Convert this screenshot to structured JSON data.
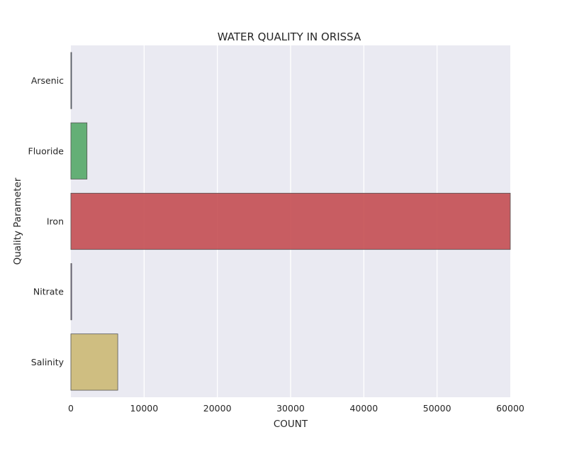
{
  "chart_data": {
    "type": "bar",
    "orientation": "horizontal",
    "title": "WATER QUALITY IN ORISSA",
    "xlabel": "COUNT",
    "ylabel": "Quality Parameter",
    "categories": [
      "Arsenic",
      "Fluoride",
      "Iron",
      "Nitrate",
      "Salinity"
    ],
    "values": [
      90,
      2200,
      60000,
      110,
      6400
    ],
    "colors": [
      "#4c72b0",
      "#55a868",
      "#c44e52",
      "#8172b2",
      "#ccb974"
    ],
    "xlim": [
      0,
      60000
    ],
    "xticks": [
      "0",
      "10000",
      "20000",
      "30000",
      "40000",
      "50000",
      "60000"
    ],
    "xtick_values": [
      0,
      10000,
      20000,
      30000,
      40000,
      50000,
      60000
    ],
    "grid": true,
    "background": "#eaeaf2"
  }
}
